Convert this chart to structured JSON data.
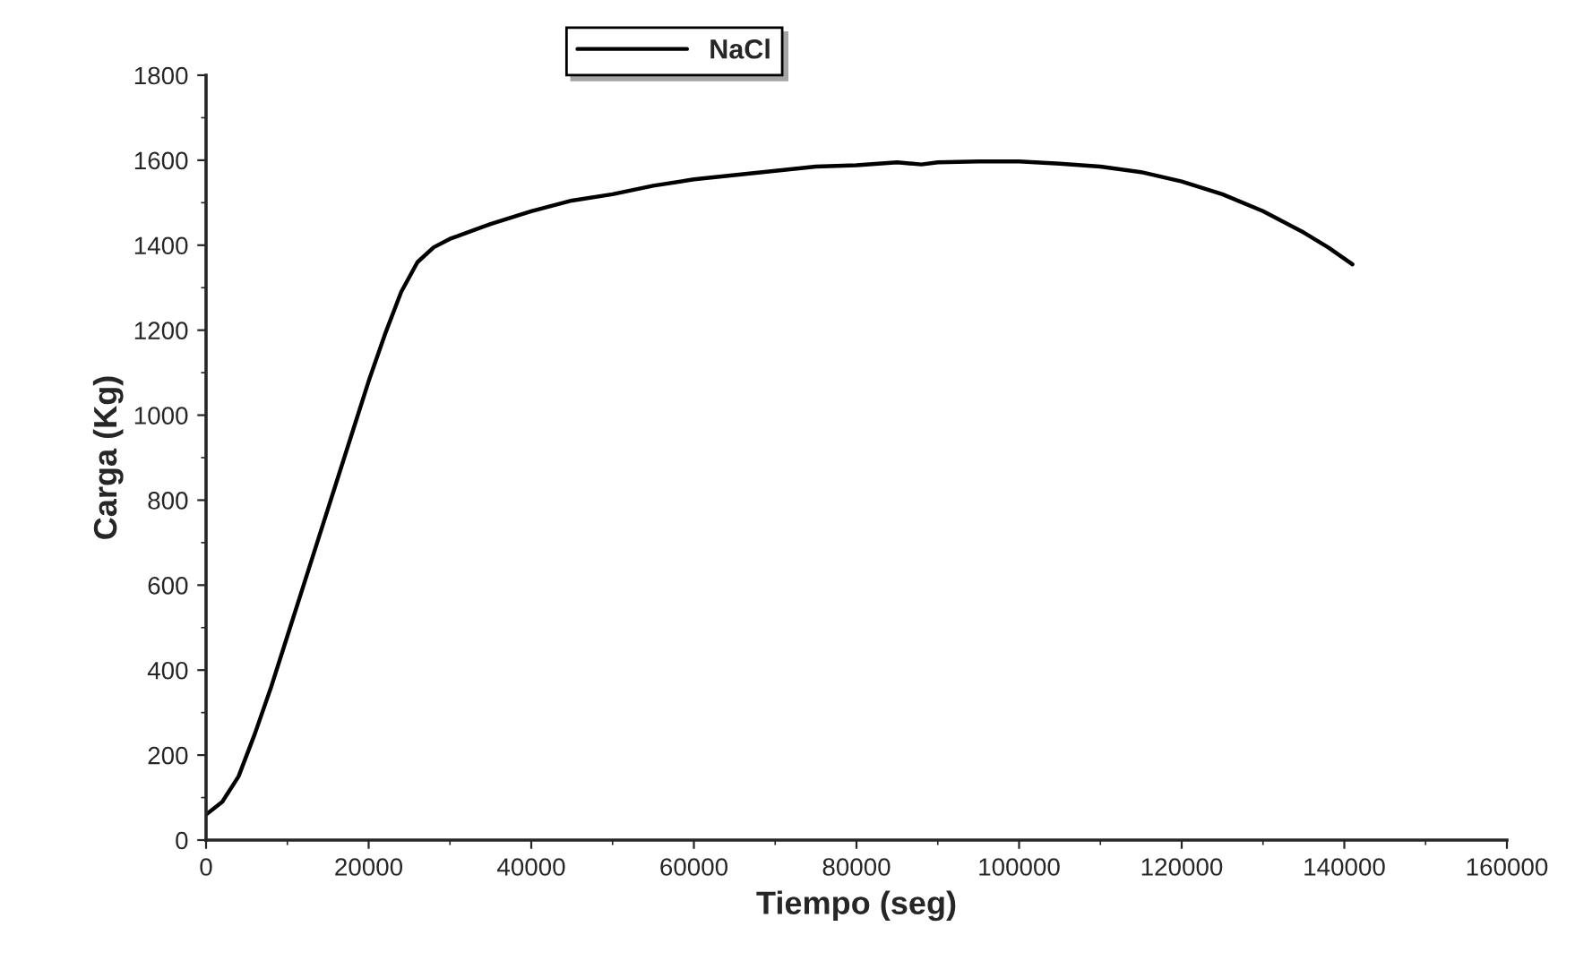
{
  "chart_data": {
    "type": "line",
    "xlabel": "Tiempo (seg)",
    "ylabel": "Carga (Kg)",
    "xlim": [
      0,
      160000
    ],
    "xticks": [
      0,
      20000,
      40000,
      60000,
      80000,
      100000,
      120000,
      140000,
      160000
    ],
    "ylim": [
      0,
      1800
    ],
    "yticks": [
      0,
      200,
      400,
      600,
      800,
      1000,
      1200,
      1400,
      1600,
      1800
    ],
    "grid": false,
    "legend": "top",
    "marker": "none",
    "line_style": "solid",
    "series": [
      {
        "name": "NaCl",
        "color": "#000000",
        "x": [
          0,
          2000,
          4000,
          6000,
          8000,
          10000,
          12000,
          14000,
          16000,
          18000,
          20000,
          22000,
          24000,
          26000,
          28000,
          30000,
          35000,
          40000,
          45000,
          50000,
          55000,
          60000,
          65000,
          70000,
          75000,
          80000,
          85000,
          88000,
          90000,
          95000,
          100000,
          105000,
          110000,
          115000,
          120000,
          125000,
          130000,
          135000,
          138000,
          141000
        ],
        "values": [
          60,
          90,
          150,
          250,
          360,
          480,
          600,
          720,
          840,
          960,
          1080,
          1190,
          1290,
          1360,
          1395,
          1415,
          1450,
          1480,
          1505,
          1520,
          1540,
          1555,
          1565,
          1575,
          1585,
          1588,
          1595,
          1590,
          1595,
          1597,
          1597,
          1592,
          1585,
          1572,
          1550,
          1520,
          1480,
          1430,
          1395,
          1355
        ]
      }
    ]
  }
}
